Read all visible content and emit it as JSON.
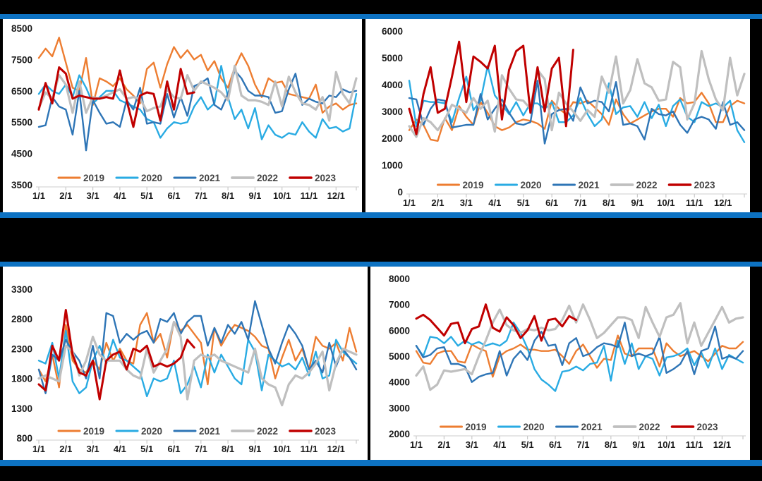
{
  "page": {
    "background": "#000000",
    "panel_background": "#ffffff",
    "divider_color": "#0d72c2"
  },
  "legend": {
    "position": "bottom-center",
    "years": [
      "2019",
      "2020",
      "2021",
      "2022",
      "2023"
    ]
  },
  "colors": {
    "2019": "#ED7D31",
    "2020": "#29ABE3",
    "2021": "#2E75B6",
    "2022": "#BFBFBF",
    "2023": "#C00000"
  },
  "x_tick_labels": [
    "1/1",
    "2/1",
    "3/1",
    "4/1",
    "5/1",
    "6/1",
    "7/1",
    "8/1",
    "9/1",
    "10/1",
    "11/1",
    "12/1"
  ],
  "chart_data": [
    {
      "id": "top-left",
      "type": "line",
      "grid": false,
      "x_unit": "weekly",
      "ylim": [
        3500,
        8500
      ],
      "yticks": [
        8500,
        7500,
        6500,
        5500,
        4500,
        3500
      ],
      "series": [
        {
          "name": "2019",
          "values": [
            7550,
            7850,
            7600,
            8200,
            7400,
            6600,
            6500,
            7550,
            6050,
            6900,
            6800,
            6650,
            6900,
            6550,
            6350,
            6100,
            7200,
            7400,
            6600,
            7350,
            7900,
            7550,
            7800,
            7500,
            7650,
            7150,
            7450,
            6900,
            6600,
            7250,
            7700,
            7300,
            6700,
            6300,
            6900,
            6750,
            6800,
            6400,
            6350,
            6300,
            6250,
            6700,
            5800,
            6000,
            6100,
            5900,
            6050,
            6100
          ]
        },
        {
          "name": "2020",
          "values": [
            6400,
            6700,
            6500,
            6400,
            6700,
            6300,
            7000,
            6600,
            6100,
            6300,
            6500,
            6500,
            6200,
            6100,
            6000,
            5900,
            5600,
            5500,
            5000,
            5300,
            5500,
            5450,
            5500,
            6000,
            6300,
            5900,
            6100,
            7300,
            6300,
            5600,
            5900,
            5300,
            5950,
            4950,
            5400,
            5100,
            5000,
            5150,
            5100,
            5500,
            5200,
            5000,
            5600,
            5300,
            5350,
            5200,
            5300,
            6400
          ]
        },
        {
          "name": "2021",
          "values": [
            5350,
            5400,
            6300,
            6000,
            5900,
            5100,
            6500,
            4600,
            6200,
            5800,
            5450,
            5500,
            5350,
            6200,
            5900,
            6600,
            5450,
            5500,
            5450,
            6400,
            5650,
            6300,
            5700,
            6650,
            6750,
            6900,
            6050,
            5900,
            6400,
            7150,
            6900,
            6500,
            6350,
            6350,
            6300,
            5800,
            5850,
            6550,
            7050,
            6050,
            6250,
            6150,
            6100,
            6350,
            6300,
            6550,
            6450,
            6500
          ]
        },
        {
          "name": "2022",
          "values": [
            5950,
            6450,
            6250,
            7000,
            6700,
            5800,
            6800,
            5800,
            6300,
            6250,
            6350,
            6450,
            6550,
            6250,
            6300,
            6250,
            5850,
            5950,
            6000,
            6550,
            6300,
            6250,
            7000,
            6500,
            6800,
            6700,
            6600,
            6450,
            6200,
            7300,
            6350,
            6200,
            6200,
            6150,
            6050,
            6800,
            6000,
            6950,
            6450,
            6100,
            6050,
            5900,
            6300,
            5550,
            7100,
            6400,
            6100,
            6900
          ]
        },
        {
          "name": "2023",
          "values": [
            5900,
            6750,
            6100,
            7250,
            7050,
            6250,
            6350,
            6300,
            6250,
            6250,
            6300,
            6250,
            7150,
            6200,
            5350,
            6350,
            6450,
            6400,
            5550,
            6800,
            5900,
            7200,
            6400,
            6450
          ]
        }
      ]
    },
    {
      "id": "top-right",
      "type": "line",
      "grid": false,
      "x_unit": "weekly",
      "ylim": [
        0,
        6000
      ],
      "yticks": [
        6000,
        5000,
        4000,
        3000,
        2000,
        1000,
        0
      ],
      "series": [
        {
          "name": "2019",
          "values": [
            2300,
            2700,
            2500,
            1950,
            1900,
            2750,
            2300,
            3200,
            2800,
            2500,
            3350,
            2950,
            2450,
            2300,
            2400,
            2600,
            2700,
            2650,
            2550,
            2350,
            3400,
            3100,
            2900,
            3350,
            3300,
            3400,
            3150,
            2900,
            2500,
            3450,
            2900,
            2550,
            2700,
            2850,
            3000,
            3100,
            3100,
            2800,
            3500,
            3300,
            3350,
            3700,
            3300,
            2600,
            2600,
            3200,
            3400,
            3300
          ]
        },
        {
          "name": "2020",
          "values": [
            4150,
            2450,
            3400,
            3350,
            3350,
            3300,
            2600,
            3500,
            4300,
            3050,
            3400,
            4700,
            3600,
            3250,
            2900,
            3350,
            2850,
            3300,
            3300,
            3100,
            3350,
            2600,
            2600,
            2850,
            3500,
            2900,
            2450,
            2700,
            4050,
            2900,
            3150,
            3200,
            2800,
            3350,
            2750,
            3250,
            2450,
            3200,
            3450,
            2800,
            2600,
            3350,
            3200,
            3300,
            3150,
            3400,
            2300,
            1850
          ]
        },
        {
          "name": "2021",
          "values": [
            3500,
            3450,
            2500,
            3100,
            3450,
            3400,
            2400,
            2450,
            2500,
            2500,
            3650,
            2700,
            3100,
            3450,
            2950,
            2550,
            2500,
            2600,
            4150,
            1800,
            2900,
            3050,
            3100,
            2650,
            3900,
            3300,
            3400,
            3350,
            3000,
            4100,
            2500,
            2550,
            2450,
            1950,
            3100,
            2900,
            2850,
            3000,
            2500,
            2200,
            2700,
            2800,
            2700,
            2350,
            3350,
            2500,
            2600,
            2300
          ]
        },
        {
          "name": "2022",
          "values": [
            2450,
            2050,
            2750,
            2600,
            2300,
            2700,
            3250,
            3100,
            2950,
            3500,
            3100,
            3400,
            2250,
            4350,
            3850,
            3450,
            3400,
            3100,
            4550,
            4200,
            2300,
            3700,
            3300,
            3000,
            2650,
            3050,
            2800,
            4300,
            3700,
            5050,
            3300,
            3800,
            4950,
            4050,
            3900,
            3400,
            3450,
            4850,
            4650,
            2700,
            3300,
            5250,
            4200,
            3450,
            3050,
            5000,
            3600,
            4400
          ]
        },
        {
          "name": "2023",
          "values": [
            3100,
            2150,
            3650,
            4650,
            2950,
            3100,
            4300,
            5600,
            3350,
            5050,
            4850,
            4600,
            5450,
            2700,
            4550,
            5250,
            5450,
            2950,
            4650,
            3000,
            4600,
            5000,
            2450,
            5300
          ]
        }
      ]
    },
    {
      "id": "bottom-left",
      "type": "line",
      "grid": false,
      "x_unit": "weekly",
      "ylim": [
        800,
        3300
      ],
      "yticks": [
        3300,
        2800,
        2300,
        1800,
        1300,
        800
      ],
      "series": [
        {
          "name": "2019",
          "values": [
            1950,
            1750,
            2200,
            1650,
            2700,
            2100,
            1950,
            1900,
            2100,
            1950,
            2400,
            2100,
            2300,
            2100,
            2050,
            2700,
            2900,
            2400,
            2550,
            2150,
            2750,
            2600,
            2700,
            2550,
            2400,
            1700,
            2650,
            2350,
            2550,
            2700,
            2650,
            2600,
            2500,
            2350,
            2300,
            1800,
            2150,
            2450,
            2100,
            2300,
            1950,
            2500,
            2350,
            2300,
            2400,
            2100,
            2650,
            2250
          ]
        },
        {
          "name": "2020",
          "values": [
            2100,
            2050,
            2400,
            1800,
            2600,
            1750,
            1550,
            1650,
            2100,
            2350,
            2050,
            2450,
            2150,
            2100,
            2000,
            1900,
            1500,
            1800,
            1750,
            1800,
            2100,
            1550,
            1700,
            2000,
            1650,
            2200,
            1900,
            2200,
            2000,
            1800,
            1700,
            2450,
            2250,
            1600,
            2200,
            2100,
            2000,
            2050,
            1950,
            2150,
            1850,
            2250,
            1800,
            1850,
            2450,
            2250,
            2150,
            2050
          ]
        },
        {
          "name": "2021",
          "values": [
            1950,
            1550,
            2200,
            2100,
            2450,
            2250,
            2100,
            1800,
            2350,
            1800,
            2900,
            2850,
            2400,
            2550,
            2450,
            2550,
            2600,
            2400,
            2800,
            2750,
            2900,
            2550,
            2750,
            2850,
            2850,
            2350,
            2650,
            2400,
            2700,
            2550,
            2750,
            2450,
            3100,
            2700,
            2300,
            2050,
            2400,
            2700,
            2550,
            2350,
            1950,
            2100,
            1900,
            2400,
            2000,
            2300,
            2150,
            1950
          ]
        },
        {
          "name": "2022",
          "values": [
            1800,
            1850,
            1800,
            1750,
            2350,
            2250,
            1850,
            2100,
            2500,
            2200,
            2100,
            2100,
            2100,
            1950,
            1850,
            1800,
            2300,
            1900,
            2100,
            2300,
            2750,
            2500,
            1450,
            2100,
            2200,
            2150,
            2200,
            2100,
            2050,
            2000,
            1950,
            1900,
            2300,
            1800,
            1700,
            1650,
            1350,
            1700,
            1850,
            1800,
            1900,
            2050,
            2250,
            1600,
            2050,
            2300,
            2250,
            2200
          ]
        },
        {
          "name": "2023",
          "values": [
            1700,
            1600,
            2350,
            2100,
            2950,
            2200,
            1900,
            1850,
            2100,
            1450,
            2100,
            2200,
            2250,
            1950,
            2300,
            2250,
            2350,
            2000,
            2050,
            2000,
            2050,
            2150,
            2450,
            2320
          ]
        }
      ]
    },
    {
      "id": "bottom-right",
      "type": "line",
      "grid": false,
      "x_unit": "weekly",
      "ylim": [
        2000,
        8000
      ],
      "yticks": [
        8000,
        7000,
        6000,
        5000,
        4000,
        3000,
        2000
      ],
      "series": [
        {
          "name": "2019",
          "values": [
            5200,
            4750,
            4700,
            5100,
            5200,
            5200,
            4800,
            4750,
            5450,
            5300,
            5200,
            4200,
            5000,
            5200,
            5300,
            5450,
            5250,
            5250,
            5200,
            5200,
            5250,
            5000,
            4700,
            5200,
            5450,
            5000,
            4550,
            4900,
            4850,
            5800,
            5100,
            5000,
            5300,
            5300,
            5300,
            4600,
            5500,
            5200,
            5000,
            5100,
            5200,
            5000,
            4800,
            5100,
            5400,
            5300,
            5300,
            5550
          ]
        },
        {
          "name": "2020",
          "values": [
            5400,
            5000,
            5750,
            5700,
            5500,
            5750,
            5400,
            5600,
            5450,
            5550,
            5400,
            5500,
            5400,
            5600,
            6300,
            5900,
            5300,
            4500,
            4100,
            3900,
            3650,
            4400,
            4450,
            4600,
            4450,
            4700,
            4750,
            5400,
            4050,
            5600,
            4700,
            5500,
            4500,
            5000,
            4900,
            4250,
            4950,
            5000,
            5100,
            5300,
            4650,
            5150,
            4550,
            5300,
            4500,
            5050,
            4900,
            4750
          ]
        },
        {
          "name": "2021",
          "values": [
            5400,
            4950,
            5050,
            5300,
            5350,
            4700,
            4700,
            4600,
            4000,
            4200,
            4300,
            4350,
            5200,
            4250,
            4900,
            5200,
            4850,
            5600,
            5950,
            5400,
            5450,
            4650,
            5500,
            5700,
            5000,
            5100,
            5350,
            5500,
            5450,
            5350,
            6300,
            5000,
            5100,
            5000,
            5100,
            5750,
            4350,
            4500,
            4700,
            5200,
            4300,
            5200,
            5300,
            6150,
            4900,
            5000,
            4900,
            5200
          ]
        },
        {
          "name": "2022",
          "values": [
            4250,
            4600,
            3700,
            3900,
            4450,
            4400,
            4450,
            4500,
            4300,
            5000,
            5600,
            6300,
            6800,
            6200,
            6000,
            5900,
            6050,
            6000,
            6100,
            6000,
            6050,
            6400,
            6950,
            6300,
            7000,
            6400,
            5700,
            5900,
            6200,
            6500,
            6500,
            6400,
            5700,
            6900,
            6300,
            5750,
            6500,
            6600,
            7050,
            5500,
            6300,
            5400,
            5900,
            6400,
            6900,
            6300,
            6450,
            6500
          ]
        },
        {
          "name": "2023",
          "values": [
            6450,
            6600,
            6400,
            6100,
            5800,
            6250,
            6300,
            5500,
            6050,
            6150,
            7000,
            6100,
            5950,
            6500,
            6200,
            5700,
            6000,
            6550,
            5600,
            6400,
            6450,
            6150,
            6550,
            6400
          ]
        }
      ]
    }
  ]
}
